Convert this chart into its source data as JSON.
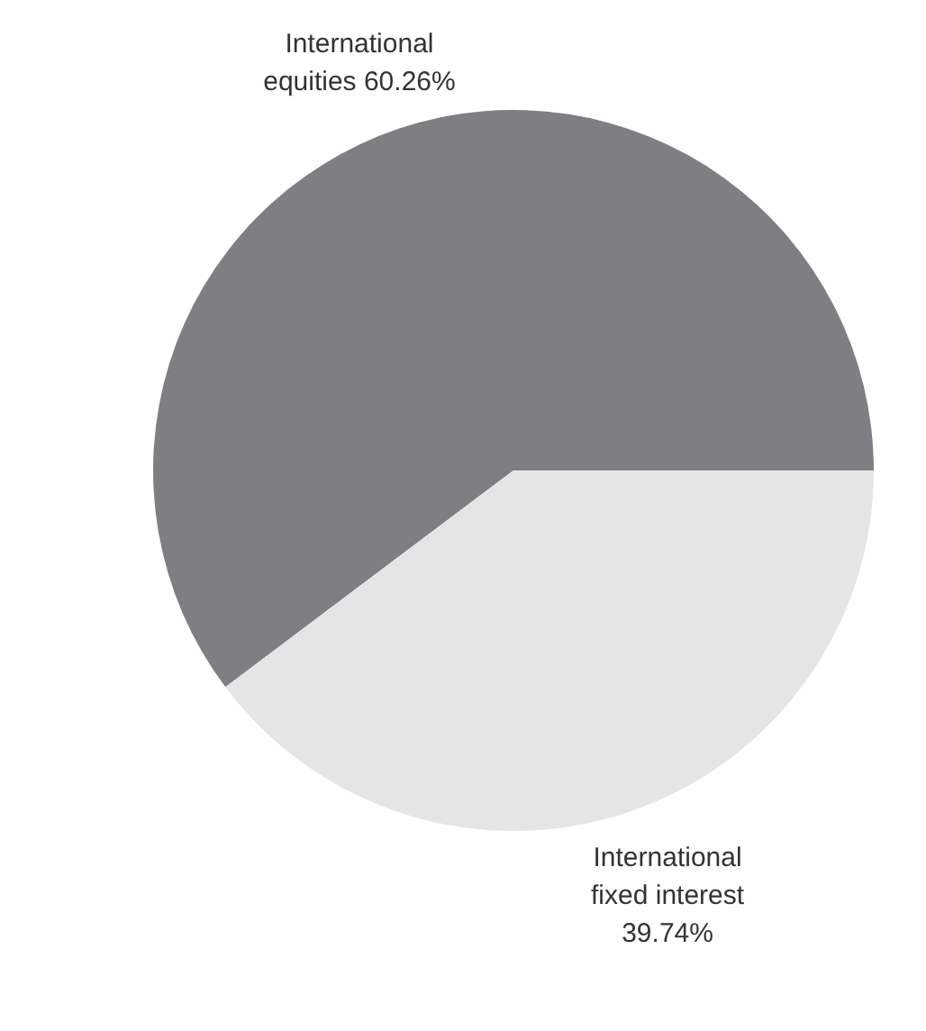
{
  "chart_data": {
    "type": "pie",
    "categories": [
      "International equities",
      "International fixed interest"
    ],
    "values": [
      60.26,
      39.74
    ],
    "value_labels": [
      "60.26%",
      "39.74%"
    ],
    "colors": [
      "#7f7e83",
      "#e5e5e5"
    ]
  }
}
